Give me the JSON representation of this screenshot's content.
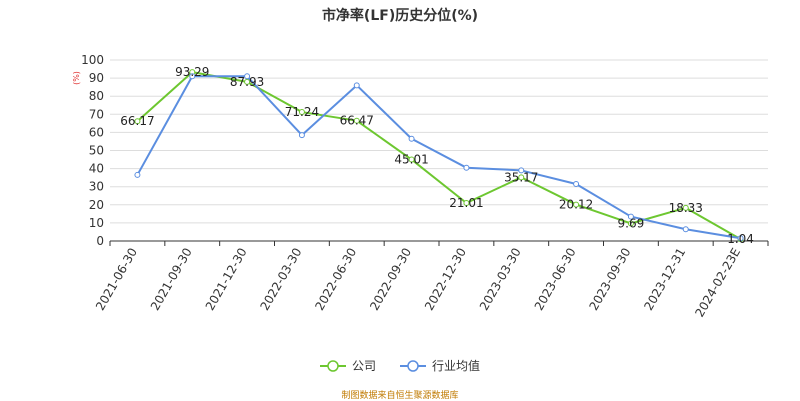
{
  "chart_data": {
    "type": "line",
    "title": "市净率(LF)历史分位(%)",
    "ylabel": "(%)",
    "xlabel": "",
    "ylim": [
      0,
      100
    ],
    "y_ticks": [
      0,
      10,
      20,
      30,
      40,
      50,
      60,
      70,
      80,
      90,
      100
    ],
    "categories": [
      "2021-06-30",
      "2021-09-30",
      "2021-12-30",
      "2022-03-30",
      "2022-06-30",
      "2022-09-30",
      "2022-12-30",
      "2023-03-30",
      "2023-06-30",
      "2023-09-30",
      "2023-12-31",
      "2024-02-23E"
    ],
    "series": [
      {
        "name": "公司",
        "color": "#6dc730",
        "values": [
          66.17,
          93.29,
          87.93,
          71.24,
          66.47,
          45.01,
          21.01,
          35.17,
          20.12,
          9.69,
          18.33,
          1.04
        ],
        "labels": [
          "66.17",
          "93.29",
          "87.93",
          "71.24",
          "66.47",
          "45.01",
          "21.01",
          "35.17",
          "20.12",
          "9.69",
          "18.33",
          "1.04"
        ]
      },
      {
        "name": "行业均值",
        "color": "#5b8ee0",
        "values": [
          36.5,
          91.0,
          91.0,
          58.5,
          86.0,
          56.5,
          40.5,
          39.0,
          31.5,
          13.5,
          6.5,
          1.5
        ]
      }
    ],
    "grid": true,
    "legend_position": "bottom-center"
  },
  "source_note": "制图数据来自恒生聚源数据库"
}
